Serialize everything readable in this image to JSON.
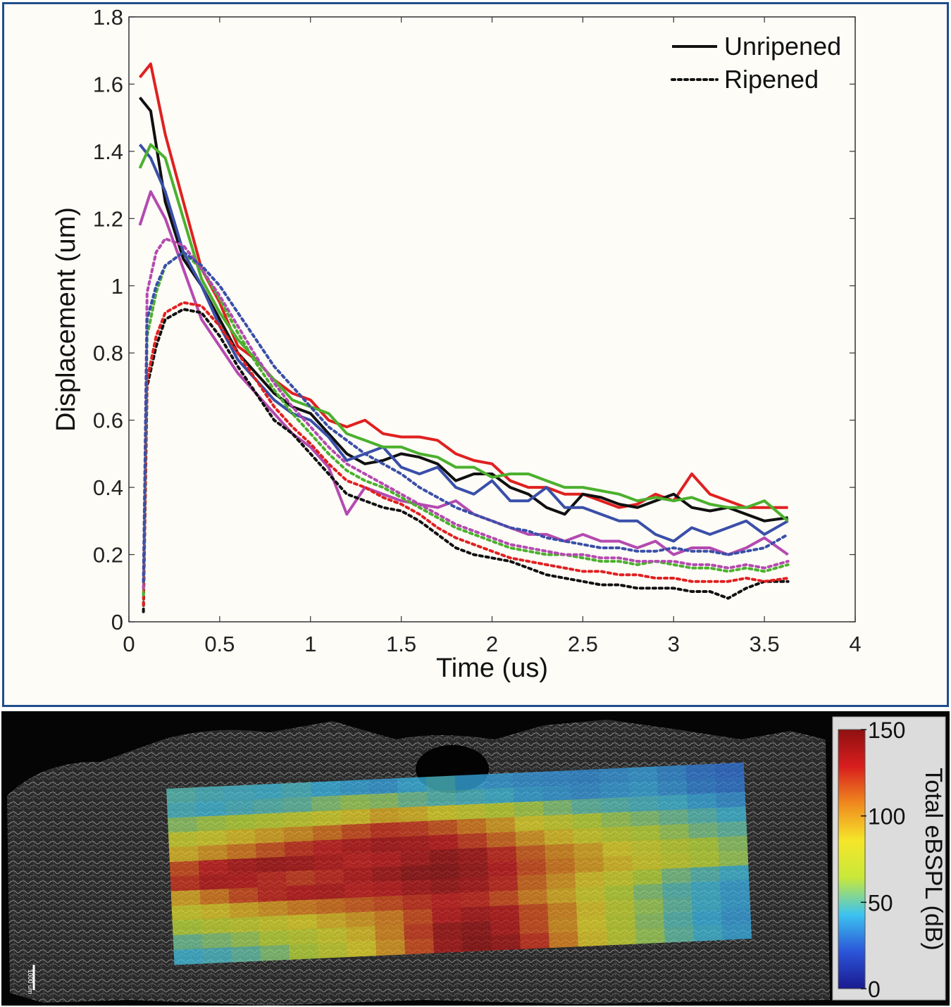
{
  "chart_data": [
    {
      "type": "line",
      "xlabel": "Time (us)",
      "ylabel": "Displacement (um)",
      "xlim": [
        0,
        4
      ],
      "ylim": [
        0,
        1.8
      ],
      "xticks": [
        "0",
        "0.5",
        "1",
        "1.5",
        "2",
        "2.5",
        "3",
        "3.5",
        "4"
      ],
      "yticks": [
        "0",
        "0.2",
        "0.4",
        "0.6",
        "0.8",
        "1",
        "1.2",
        "1.4",
        "1.6",
        "1.8"
      ],
      "grid": false,
      "legend": {
        "position": "top-right",
        "entries": [
          {
            "label": "Unripened",
            "style": "solid"
          },
          {
            "label": "Ripened",
            "style": "dotted"
          }
        ]
      },
      "series": [
        {
          "style": "solid",
          "color": "#e02020",
          "x": [
            0.06,
            0.12,
            0.2,
            0.3,
            0.4,
            0.5,
            0.6,
            0.7,
            0.8,
            0.9,
            1.0,
            1.1,
            1.2,
            1.3,
            1.4,
            1.5,
            1.6,
            1.7,
            1.8,
            1.9,
            2.0,
            2.1,
            2.2,
            2.3,
            2.4,
            2.5,
            2.6,
            2.7,
            2.8,
            2.9,
            3.0,
            3.1,
            3.2,
            3.3,
            3.4,
            3.5,
            3.63
          ],
          "y": [
            1.62,
            1.66,
            1.45,
            1.25,
            1.05,
            0.95,
            0.82,
            0.78,
            0.72,
            0.68,
            0.66,
            0.6,
            0.58,
            0.6,
            0.56,
            0.55,
            0.55,
            0.54,
            0.5,
            0.48,
            0.47,
            0.42,
            0.4,
            0.4,
            0.38,
            0.38,
            0.36,
            0.34,
            0.35,
            0.38,
            0.36,
            0.44,
            0.38,
            0.36,
            0.34,
            0.34,
            0.34
          ]
        },
        {
          "style": "solid",
          "color": "#101010",
          "x": [
            0.06,
            0.12,
            0.2,
            0.3,
            0.4,
            0.5,
            0.6,
            0.7,
            0.8,
            0.9,
            1.0,
            1.1,
            1.2,
            1.3,
            1.4,
            1.5,
            1.6,
            1.7,
            1.8,
            1.9,
            2.0,
            2.1,
            2.2,
            2.3,
            2.4,
            2.5,
            2.6,
            2.7,
            2.8,
            2.9,
            3.0,
            3.1,
            3.2,
            3.3,
            3.4,
            3.5,
            3.63
          ],
          "y": [
            1.56,
            1.52,
            1.25,
            1.08,
            1.0,
            0.9,
            0.8,
            0.74,
            0.68,
            0.64,
            0.62,
            0.56,
            0.5,
            0.47,
            0.48,
            0.5,
            0.49,
            0.47,
            0.42,
            0.44,
            0.44,
            0.4,
            0.38,
            0.34,
            0.32,
            0.38,
            0.37,
            0.35,
            0.34,
            0.36,
            0.38,
            0.34,
            0.33,
            0.34,
            0.32,
            0.3,
            0.31
          ]
        },
        {
          "style": "solid",
          "color": "#3a4fa8",
          "x": [
            0.06,
            0.12,
            0.2,
            0.3,
            0.4,
            0.5,
            0.6,
            0.7,
            0.8,
            0.9,
            1.0,
            1.1,
            1.2,
            1.3,
            1.4,
            1.5,
            1.6,
            1.7,
            1.8,
            1.9,
            2.0,
            2.1,
            2.2,
            2.3,
            2.4,
            2.5,
            2.6,
            2.7,
            2.8,
            2.9,
            3.0,
            3.1,
            3.2,
            3.3,
            3.4,
            3.5,
            3.63
          ],
          "y": [
            1.42,
            1.38,
            1.28,
            1.1,
            1.0,
            0.88,
            0.78,
            0.72,
            0.66,
            0.62,
            0.6,
            0.55,
            0.48,
            0.5,
            0.52,
            0.46,
            0.44,
            0.46,
            0.4,
            0.38,
            0.42,
            0.36,
            0.36,
            0.4,
            0.34,
            0.34,
            0.32,
            0.3,
            0.3,
            0.26,
            0.24,
            0.28,
            0.26,
            0.28,
            0.3,
            0.26,
            0.3
          ]
        },
        {
          "style": "solid",
          "color": "#4cb02e",
          "x": [
            0.06,
            0.12,
            0.2,
            0.3,
            0.4,
            0.5,
            0.6,
            0.7,
            0.8,
            0.9,
            1.0,
            1.1,
            1.2,
            1.3,
            1.4,
            1.5,
            1.6,
            1.7,
            1.8,
            1.9,
            2.0,
            2.1,
            2.2,
            2.3,
            2.4,
            2.5,
            2.6,
            2.7,
            2.8,
            2.9,
            3.0,
            3.1,
            3.2,
            3.3,
            3.4,
            3.5,
            3.63
          ],
          "y": [
            1.35,
            1.42,
            1.38,
            1.2,
            1.02,
            0.92,
            0.84,
            0.78,
            0.72,
            0.66,
            0.64,
            0.62,
            0.56,
            0.54,
            0.52,
            0.52,
            0.5,
            0.49,
            0.46,
            0.46,
            0.43,
            0.44,
            0.44,
            0.42,
            0.4,
            0.4,
            0.39,
            0.38,
            0.36,
            0.37,
            0.36,
            0.37,
            0.35,
            0.34,
            0.34,
            0.36,
            0.3
          ]
        },
        {
          "style": "solid",
          "color": "#b44ab0",
          "x": [
            0.06,
            0.12,
            0.2,
            0.3,
            0.4,
            0.5,
            0.6,
            0.7,
            0.8,
            0.9,
            1.0,
            1.1,
            1.2,
            1.3,
            1.4,
            1.5,
            1.6,
            1.7,
            1.8,
            1.9,
            2.0,
            2.1,
            2.2,
            2.3,
            2.4,
            2.5,
            2.6,
            2.7,
            2.8,
            2.9,
            3.0,
            3.1,
            3.2,
            3.3,
            3.4,
            3.5,
            3.63
          ],
          "y": [
            1.18,
            1.28,
            1.2,
            1.05,
            0.9,
            0.82,
            0.74,
            0.68,
            0.62,
            0.56,
            0.52,
            0.46,
            0.32,
            0.4,
            0.38,
            0.36,
            0.35,
            0.34,
            0.36,
            0.32,
            0.3,
            0.28,
            0.26,
            0.26,
            0.24,
            0.26,
            0.24,
            0.24,
            0.22,
            0.24,
            0.2,
            0.22,
            0.22,
            0.2,
            0.22,
            0.25,
            0.2
          ]
        },
        {
          "style": "dotted",
          "color": "#101010",
          "x": [
            0.08,
            0.1,
            0.15,
            0.2,
            0.3,
            0.4,
            0.5,
            0.6,
            0.7,
            0.8,
            0.9,
            1.0,
            1.1,
            1.2,
            1.3,
            1.4,
            1.5,
            1.6,
            1.7,
            1.8,
            1.9,
            2.0,
            2.1,
            2.2,
            2.3,
            2.4,
            2.5,
            2.6,
            2.7,
            2.8,
            2.9,
            3.0,
            3.1,
            3.2,
            3.3,
            3.4,
            3.5,
            3.63
          ],
          "y": [
            0.03,
            0.7,
            0.82,
            0.9,
            0.93,
            0.92,
            0.85,
            0.76,
            0.68,
            0.6,
            0.56,
            0.5,
            0.44,
            0.38,
            0.36,
            0.34,
            0.33,
            0.3,
            0.26,
            0.22,
            0.2,
            0.19,
            0.18,
            0.16,
            0.14,
            0.13,
            0.12,
            0.11,
            0.11,
            0.1,
            0.1,
            0.1,
            0.09,
            0.09,
            0.07,
            0.1,
            0.12,
            0.12
          ]
        },
        {
          "style": "dotted",
          "color": "#e02020",
          "x": [
            0.08,
            0.1,
            0.15,
            0.2,
            0.3,
            0.4,
            0.5,
            0.6,
            0.7,
            0.8,
            0.9,
            1.0,
            1.1,
            1.2,
            1.3,
            1.4,
            1.5,
            1.6,
            1.7,
            1.8,
            1.9,
            2.0,
            2.1,
            2.2,
            2.3,
            2.4,
            2.5,
            2.6,
            2.7,
            2.8,
            2.9,
            3.0,
            3.1,
            3.2,
            3.3,
            3.4,
            3.5,
            3.63
          ],
          "y": [
            0.05,
            0.72,
            0.85,
            0.92,
            0.95,
            0.94,
            0.88,
            0.8,
            0.72,
            0.64,
            0.58,
            0.53,
            0.47,
            0.42,
            0.4,
            0.37,
            0.35,
            0.32,
            0.28,
            0.25,
            0.23,
            0.21,
            0.19,
            0.18,
            0.17,
            0.16,
            0.15,
            0.15,
            0.14,
            0.14,
            0.13,
            0.13,
            0.12,
            0.12,
            0.12,
            0.13,
            0.12,
            0.13
          ]
        },
        {
          "style": "dotted",
          "color": "#4cb02e",
          "x": [
            0.08,
            0.1,
            0.15,
            0.2,
            0.3,
            0.4,
            0.5,
            0.6,
            0.7,
            0.8,
            0.9,
            1.0,
            1.1,
            1.2,
            1.3,
            1.4,
            1.5,
            1.6,
            1.7,
            1.8,
            1.9,
            2.0,
            2.1,
            2.2,
            2.3,
            2.4,
            2.5,
            2.6,
            2.7,
            2.8,
            2.9,
            3.0,
            3.1,
            3.2,
            3.3,
            3.4,
            3.5,
            3.63
          ],
          "y": [
            0.08,
            0.85,
            0.98,
            1.06,
            1.1,
            1.05,
            0.96,
            0.86,
            0.77,
            0.69,
            0.62,
            0.56,
            0.5,
            0.45,
            0.42,
            0.4,
            0.37,
            0.34,
            0.31,
            0.28,
            0.26,
            0.24,
            0.22,
            0.21,
            0.2,
            0.2,
            0.19,
            0.18,
            0.18,
            0.17,
            0.18,
            0.17,
            0.16,
            0.16,
            0.15,
            0.16,
            0.15,
            0.17
          ]
        },
        {
          "style": "dotted",
          "color": "#b44ab0",
          "x": [
            0.08,
            0.1,
            0.15,
            0.2,
            0.3,
            0.4,
            0.5,
            0.6,
            0.7,
            0.8,
            0.9,
            1.0,
            1.1,
            1.2,
            1.3,
            1.4,
            1.5,
            1.6,
            1.7,
            1.8,
            1.9,
            2.0,
            2.1,
            2.2,
            2.3,
            2.4,
            2.5,
            2.6,
            2.7,
            2.8,
            2.9,
            3.0,
            3.1,
            3.2,
            3.3,
            3.4,
            3.5,
            3.63
          ],
          "y": [
            0.1,
            0.98,
            1.1,
            1.14,
            1.12,
            1.05,
            0.97,
            0.88,
            0.79,
            0.71,
            0.64,
            0.58,
            0.52,
            0.47,
            0.44,
            0.41,
            0.38,
            0.35,
            0.32,
            0.29,
            0.27,
            0.25,
            0.23,
            0.22,
            0.21,
            0.2,
            0.2,
            0.19,
            0.19,
            0.18,
            0.18,
            0.18,
            0.17,
            0.17,
            0.16,
            0.17,
            0.16,
            0.18
          ]
        },
        {
          "style": "dotted",
          "color": "#3a4fa8",
          "x": [
            0.08,
            0.1,
            0.15,
            0.2,
            0.3,
            0.4,
            0.5,
            0.6,
            0.7,
            0.8,
            0.9,
            1.0,
            1.1,
            1.2,
            1.3,
            1.4,
            1.5,
            1.6,
            1.7,
            1.8,
            1.9,
            2.0,
            2.1,
            2.2,
            2.3,
            2.4,
            2.5,
            2.6,
            2.7,
            2.8,
            2.9,
            3.0,
            3.1,
            3.2,
            3.3,
            3.4,
            3.5,
            3.63
          ],
          "y": [
            0.12,
            0.9,
            1.0,
            1.06,
            1.1,
            1.06,
            1.0,
            0.92,
            0.84,
            0.76,
            0.7,
            0.64,
            0.58,
            0.54,
            0.5,
            0.47,
            0.44,
            0.4,
            0.37,
            0.34,
            0.32,
            0.3,
            0.28,
            0.27,
            0.25,
            0.24,
            0.23,
            0.22,
            0.22,
            0.21,
            0.21,
            0.22,
            0.21,
            0.21,
            0.2,
            0.21,
            0.22,
            0.26
          ]
        }
      ]
    },
    {
      "type": "heatmap",
      "colorbar": {
        "label": "Total eBSPL (dB)",
        "ticks": [
          "150",
          "100",
          "50",
          "0"
        ],
        "range": [
          0,
          150
        ],
        "colors": [
          "#1a1a8f",
          "#2b55d9",
          "#3cc3f0",
          "#c8e83a",
          "#f5e62a",
          "#f08a1e",
          "#d81e1e",
          "#8f1010"
        ]
      },
      "scale_bar": "1000 um",
      "rows": 12,
      "cols": 20,
      "cells": [
        [
          48,
          46,
          45,
          44,
          46,
          42,
          40,
          38,
          42,
          46,
          40,
          38,
          36,
          35,
          34,
          36,
          38,
          34,
          30,
          28
        ],
        [
          46,
          44,
          46,
          48,
          50,
          56,
          60,
          58,
          52,
          48,
          46,
          44,
          40,
          38,
          36,
          38,
          40,
          36,
          32,
          30
        ],
        [
          58,
          62,
          64,
          70,
          74,
          80,
          88,
          95,
          92,
          84,
          76,
          70,
          62,
          56,
          50,
          48,
          46,
          44,
          40,
          36
        ],
        [
          76,
          82,
          90,
          96,
          102,
          110,
          118,
          124,
          122,
          116,
          108,
          98,
          86,
          76,
          66,
          60,
          56,
          52,
          48,
          44
        ],
        [
          92,
          100,
          108,
          116,
          124,
          128,
          132,
          136,
          134,
          130,
          122,
          112,
          100,
          90,
          80,
          72,
          66,
          60,
          54,
          50
        ],
        [
          118,
          128,
          134,
          138,
          136,
          132,
          128,
          130,
          136,
          142,
          138,
          126,
          114,
          104,
          96,
          86,
          78,
          70,
          64,
          58
        ],
        [
          124,
          132,
          130,
          126,
          122,
          126,
          132,
          138,
          144,
          146,
          140,
          130,
          118,
          108,
          98,
          90,
          82,
          74,
          66,
          60
        ],
        [
          96,
          108,
          118,
          126,
          130,
          132,
          128,
          130,
          136,
          140,
          136,
          126,
          112,
          100,
          88,
          78,
          64,
          54,
          48,
          44
        ],
        [
          80,
          88,
          94,
          100,
          106,
          110,
          114,
          118,
          124,
          128,
          126,
          118,
          106,
          94,
          80,
          66,
          56,
          48,
          44,
          40
        ],
        [
          64,
          70,
          74,
          80,
          86,
          92,
          98,
          106,
          118,
          130,
          136,
          132,
          118,
          104,
          88,
          72,
          60,
          50,
          44,
          40
        ],
        [
          52,
          56,
          60,
          66,
          72,
          80,
          90,
          104,
          122,
          140,
          144,
          134,
          118,
          102,
          86,
          70,
          58,
          48,
          42,
          38
        ],
        [
          44,
          46,
          50,
          56,
          64,
          74,
          86,
          100,
          118,
          138,
          146,
          140,
          124,
          106,
          88,
          72,
          60,
          50,
          44,
          40
        ]
      ]
    }
  ]
}
